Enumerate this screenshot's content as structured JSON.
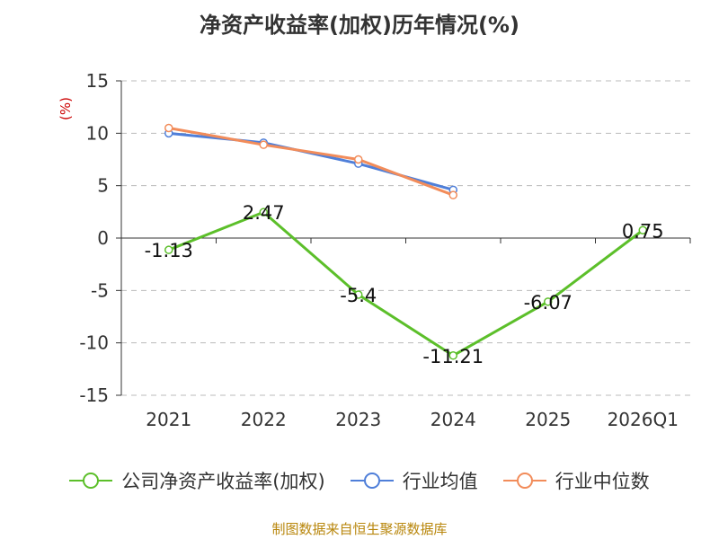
{
  "title": "净资产收益率(加权)历年情况(%)",
  "unit_label": "(%)",
  "source": "制图数据来自恒生聚源数据库",
  "chart_data": {
    "type": "line",
    "categories": [
      "2021",
      "2022",
      "2023",
      "2024",
      "2025",
      "2026Q1"
    ],
    "yticks": [
      15,
      10,
      5,
      0,
      -5,
      -10,
      -15
    ],
    "ylim": [
      -15,
      15
    ],
    "grid": true,
    "legend_position": "bottom",
    "series": [
      {
        "name": "公司净资产收益率(加权)",
        "color": "#5cbf2a",
        "values": [
          -1.13,
          2.47,
          -5.4,
          -11.21,
          -6.07,
          0.75
        ],
        "labels": [
          "-1.13",
          "2.47",
          "-5.4",
          "-11.21",
          "-6.07",
          "0.75"
        ]
      },
      {
        "name": "行业均值",
        "color": "#4f7fd9",
        "values": [
          10.0,
          9.1,
          7.1,
          4.6,
          null,
          null
        ]
      },
      {
        "name": "行业中位数",
        "color": "#f28c5a",
        "values": [
          10.5,
          8.9,
          7.5,
          4.1,
          null,
          null
        ]
      }
    ]
  }
}
